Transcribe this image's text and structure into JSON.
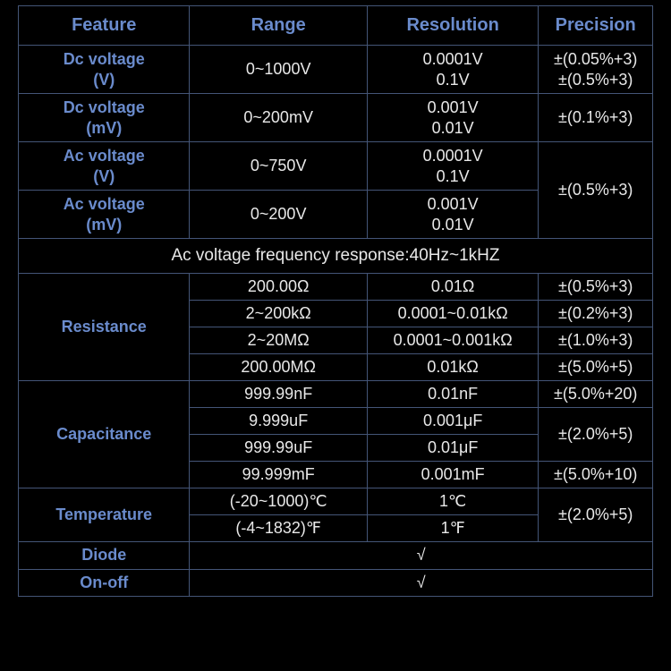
{
  "table": {
    "headers": [
      "Feature",
      "Range",
      "Resolution",
      "Precision"
    ],
    "colors": {
      "border": "#445577",
      "header_text": "#6a8bcc",
      "feature_text": "#6a8bcc",
      "body_text": "#e8e8e8",
      "background": "#000000"
    },
    "col_widths_pct": [
      27,
      28,
      27,
      18
    ],
    "header_fontsize_pt": 15,
    "feature_fontsize_pt": 14,
    "body_fontsize_pt": 13,
    "dc_v": {
      "feature_l1": "Dc voltage",
      "feature_l2": "(V)",
      "range": "0~1000V",
      "res_l1": "0.0001V",
      "res_l2": "0.1V",
      "prec_l1": "±(0.05%+3)",
      "prec_l2": "±(0.5%+3)"
    },
    "dc_mv": {
      "feature_l1": "Dc voltage",
      "feature_l2": "(mV)",
      "range": "0~200mV",
      "res_l1": "0.001V",
      "res_l2": "0.01V",
      "prec": "±(0.1%+3)"
    },
    "ac_v": {
      "feature_l1": "Ac voltage",
      "feature_l2": "(V)",
      "range": "0~750V",
      "res_l1": "0.0001V",
      "res_l2": "0.1V"
    },
    "ac_mv": {
      "feature_l1": "Ac voltage",
      "feature_l2": "(mV)",
      "range": "0~200V",
      "res_l1": "0.001V",
      "res_l2": "0.01V"
    },
    "ac_shared_prec": "±(0.5%+3)",
    "note": "Ac voltage frequency response:40Hz~1kHZ",
    "resistance": {
      "feature": "Resistance",
      "r1": {
        "range": "200.00Ω",
        "res": "0.01Ω",
        "prec": "±(0.5%+3)"
      },
      "r2": {
        "range": "2~200kΩ",
        "res": "0.0001~0.01kΩ",
        "prec": "±(0.2%+3)"
      },
      "r3": {
        "range": "2~20MΩ",
        "res": "0.0001~0.001kΩ",
        "prec": "±(1.0%+3)"
      },
      "r4": {
        "range": "200.00MΩ",
        "res": "0.01kΩ",
        "prec": "±(5.0%+5)"
      }
    },
    "capacitance": {
      "feature": "Capacitance",
      "r1": {
        "range": "999.99nF",
        "res": "0.01nF",
        "prec": "±(5.0%+20)"
      },
      "r2": {
        "range": "9.999uF",
        "res": "0.001μF"
      },
      "r3": {
        "range": "999.99uF",
        "res": "0.01μF"
      },
      "r23_prec": "±(2.0%+5)",
      "r4": {
        "range": "99.999mF",
        "res": "0.001mF",
        "prec": "±(5.0%+10)"
      }
    },
    "temperature": {
      "feature": "Temperature",
      "r1": {
        "range": "(-20~1000)℃",
        "res": "1℃"
      },
      "r2": {
        "range": "(-4~1832)℉",
        "res": "1℉"
      },
      "prec": "±(2.0%+5)"
    },
    "diode": {
      "feature": "Diode",
      "value": "√"
    },
    "onoff": {
      "feature": "On-off",
      "value": "√"
    }
  }
}
